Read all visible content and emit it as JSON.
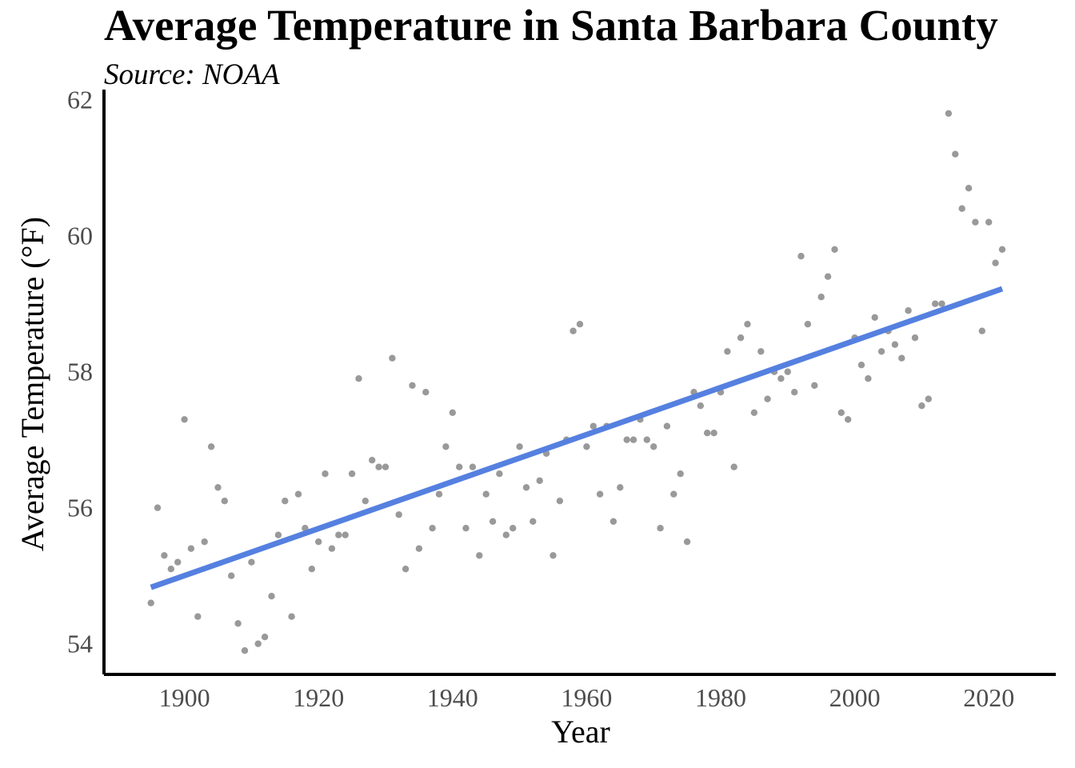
{
  "chart_data": {
    "type": "scatter",
    "title": "Average Temperature in Santa Barbara County",
    "subtitle": "Source: NOAA",
    "xlabel": "Year",
    "ylabel": "Average Temperature (°F)",
    "xlim": [
      1888,
      2030
    ],
    "ylim": [
      53.55,
      62.15
    ],
    "x_ticks": [
      1900,
      1920,
      1940,
      1960,
      1980,
      2000,
      2020
    ],
    "y_ticks": [
      54,
      56,
      58,
      60,
      62
    ],
    "grid": false,
    "point_color": "#999999",
    "trend_color": "#5580E0",
    "series": [
      {
        "type": "scatter",
        "x": [
          1895,
          1896,
          1897,
          1898,
          1899,
          1900,
          1901,
          1902,
          1903,
          1904,
          1905,
          1906,
          1907,
          1908,
          1909,
          1910,
          1911,
          1912,
          1913,
          1914,
          1915,
          1916,
          1917,
          1918,
          1919,
          1920,
          1921,
          1922,
          1923,
          1924,
          1925,
          1926,
          1927,
          1928,
          1929,
          1930,
          1931,
          1932,
          1933,
          1934,
          1935,
          1936,
          1937,
          1938,
          1939,
          1940,
          1941,
          1942,
          1943,
          1944,
          1945,
          1946,
          1947,
          1948,
          1949,
          1950,
          1951,
          1952,
          1953,
          1954,
          1955,
          1956,
          1957,
          1958,
          1959,
          1960,
          1961,
          1962,
          1963,
          1964,
          1965,
          1966,
          1967,
          1968,
          1969,
          1970,
          1971,
          1972,
          1973,
          1974,
          1975,
          1976,
          1977,
          1978,
          1979,
          1980,
          1981,
          1982,
          1983,
          1984,
          1985,
          1986,
          1987,
          1988,
          1989,
          1990,
          1991,
          1992,
          1993,
          1994,
          1995,
          1996,
          1997,
          1998,
          1999,
          2000,
          2001,
          2002,
          2003,
          2004,
          2005,
          2006,
          2007,
          2008,
          2009,
          2010,
          2011,
          2012,
          2013,
          2014,
          2015,
          2016,
          2017,
          2018,
          2019,
          2020,
          2021,
          2022
        ],
        "y": [
          54.6,
          56.0,
          55.3,
          55.1,
          55.2,
          57.3,
          55.4,
          54.4,
          55.5,
          56.9,
          56.3,
          56.1,
          55.0,
          54.3,
          53.9,
          55.2,
          54.0,
          54.1,
          54.7,
          55.6,
          56.1,
          54.4,
          56.2,
          55.7,
          55.1,
          55.5,
          56.5,
          55.4,
          55.6,
          55.6,
          56.5,
          57.9,
          56.1,
          56.7,
          56.6,
          56.6,
          58.2,
          55.9,
          55.1,
          57.8,
          55.4,
          57.7,
          55.7,
          56.2,
          56.9,
          57.4,
          56.6,
          55.7,
          56.6,
          55.3,
          56.2,
          55.8,
          56.5,
          55.6,
          55.7,
          56.9,
          56.3,
          55.8,
          56.4,
          56.8,
          55.3,
          56.1,
          57.0,
          58.6,
          58.7,
          56.9,
          57.2,
          56.2,
          57.2,
          55.8,
          56.3,
          57.0,
          57.0,
          57.3,
          57.0,
          56.9,
          55.7,
          57.2,
          56.2,
          56.5,
          55.5,
          57.7,
          57.5,
          57.1,
          57.1,
          57.7,
          58.3,
          56.6,
          58.5,
          58.7,
          57.4,
          58.3,
          57.6,
          58.0,
          57.9,
          58.0,
          57.7,
          59.7,
          58.7,
          57.8,
          59.1,
          59.4,
          59.8,
          57.4,
          57.3,
          58.5,
          58.1,
          57.9,
          58.8,
          58.3,
          58.6,
          58.4,
          58.2,
          58.9,
          58.5,
          57.5,
          57.6,
          59.0,
          59.0,
          61.8,
          61.2,
          60.4,
          60.7,
          60.2,
          58.6,
          60.2,
          59.6,
          59.8
        ]
      },
      {
        "type": "line",
        "x": [
          1895,
          2022
        ],
        "y": [
          54.83,
          59.22
        ]
      }
    ]
  }
}
